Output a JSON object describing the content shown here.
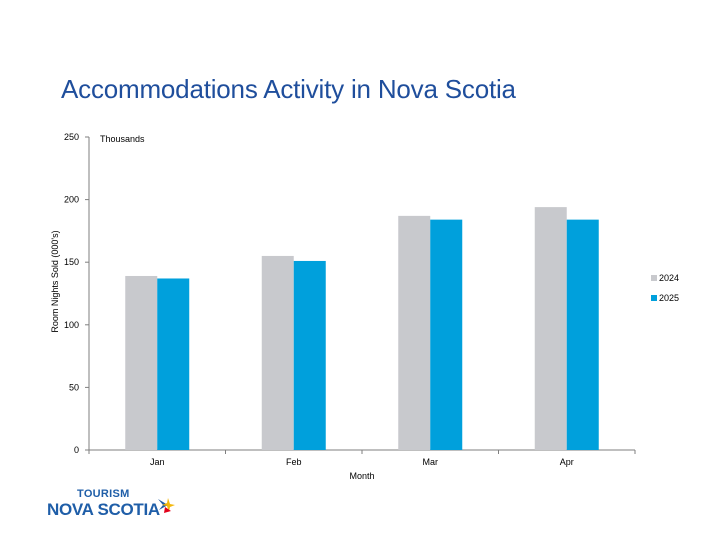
{
  "title": "Accommodations Activity in Nova Scotia",
  "logo": {
    "line1": "TOURISM",
    "line2": "NOVA SCOTIA"
  },
  "colors": {
    "title": "#1f4e9c",
    "series_2024": "#c8c9cd",
    "series_2025": "#00a0dc",
    "logo": "#1f5ea8"
  },
  "chart_data": {
    "type": "bar",
    "categories": [
      "Jan",
      "Feb",
      "Mar",
      "Apr"
    ],
    "series": [
      {
        "name": "2024",
        "values": [
          139,
          155,
          187,
          194
        ]
      },
      {
        "name": "2025",
        "values": [
          137,
          151,
          184,
          184
        ]
      }
    ],
    "xlabel": "Month",
    "ylabel": "Room Nights Sold (000's)",
    "units_note": "Thousands",
    "ylim": [
      0,
      250
    ],
    "yticks": [
      0,
      50,
      100,
      150,
      200,
      250
    ],
    "grid": false,
    "legend_position": "right"
  }
}
